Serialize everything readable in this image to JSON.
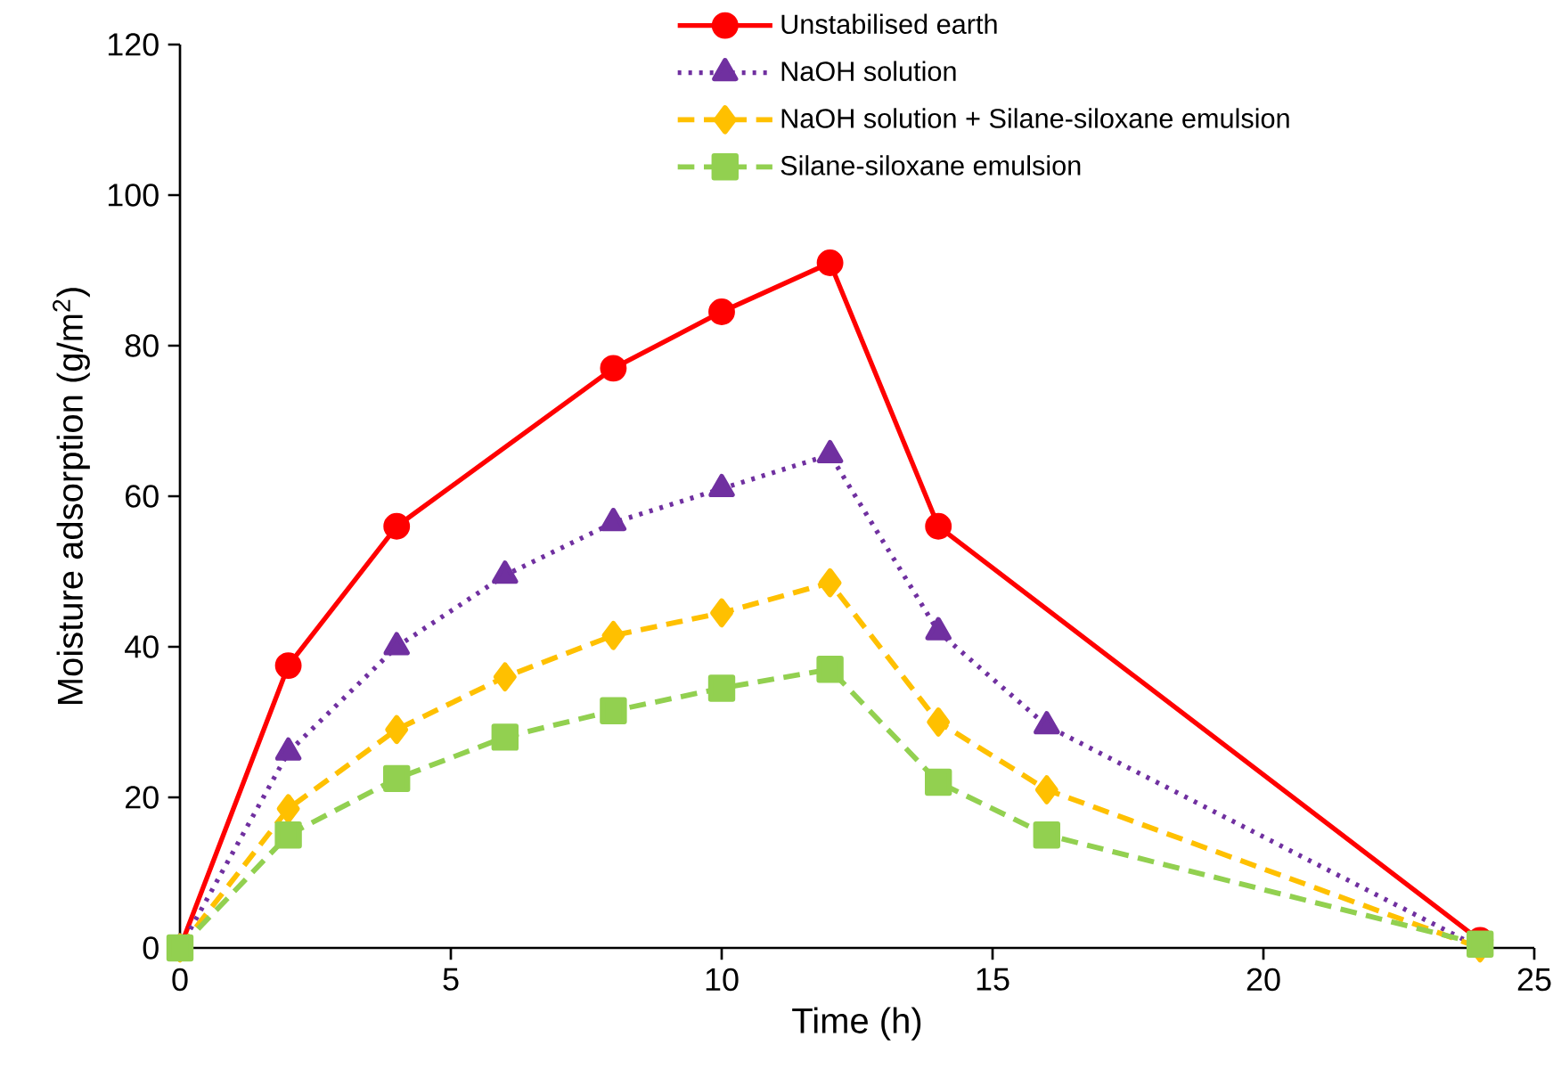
{
  "chart_data": {
    "type": "line",
    "xlabel": "Time (h)",
    "ylabel": "Moisture adsorption (g/m$^{2}$)",
    "xlim": [
      0,
      25
    ],
    "xticks": [
      0,
      5,
      10,
      15,
      20,
      25
    ],
    "ylim": [
      0,
      120
    ],
    "yticks": [
      0,
      20,
      40,
      60,
      80,
      100,
      120
    ],
    "grid": false,
    "legend": "top",
    "series": [
      {
        "name": "Unstabilised earth",
        "color": "#ff0000",
        "marker": "circle",
        "line_style": "solid",
        "x": [
          0,
          2,
          4,
          8,
          10,
          12,
          14,
          24
        ],
        "values": [
          0,
          37.5,
          56,
          77,
          84.5,
          91,
          56,
          1
        ]
      },
      {
        "name": "NaOH solution",
        "color": "#7030a0",
        "marker": "triangle",
        "line_style": "dotted",
        "x": [
          0,
          2,
          4,
          6,
          8,
          10,
          12,
          14,
          16,
          24
        ],
        "values": [
          0,
          26,
          40,
          49.5,
          56.5,
          61,
          65.5,
          42,
          29.5,
          0
        ]
      },
      {
        "name": "NaOH solution + Silane-siloxane emulsion",
        "color": "#ffc000",
        "marker": "diamond",
        "line_style": "dashed",
        "x": [
          0,
          2,
          4,
          6,
          8,
          10,
          12,
          14,
          16,
          24
        ],
        "values": [
          0,
          18.5,
          29,
          36,
          41.5,
          44.5,
          48.5,
          30,
          21,
          0
        ]
      },
      {
        "name": "Silane-siloxane emulsion",
        "color": "#92d050",
        "marker": "square",
        "line_style": "dashed",
        "x": [
          0,
          2,
          4,
          6,
          8,
          10,
          12,
          14,
          16,
          24
        ],
        "values": [
          0,
          15,
          22.5,
          28,
          31.5,
          34.5,
          37,
          22,
          15,
          0.5
        ]
      }
    ]
  }
}
